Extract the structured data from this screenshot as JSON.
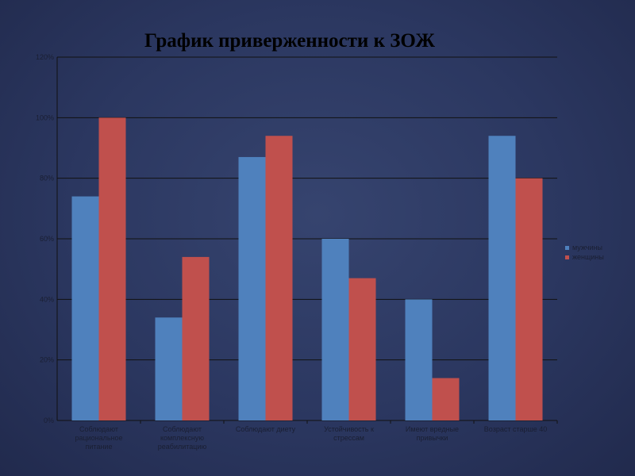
{
  "slide": {
    "title": "График приверженности к ЗОЖ"
  },
  "colors": {
    "men": "#4f81bd",
    "women": "#c0504d",
    "grid": "#111111"
  },
  "chart_data": {
    "type": "bar",
    "title": "График приверженности к ЗОЖ",
    "xlabel": "",
    "ylabel": "",
    "ylim": [
      0,
      120
    ],
    "y_ticks": [
      "0%",
      "20%",
      "40%",
      "60%",
      "80%",
      "100%",
      "120%"
    ],
    "grid": true,
    "legend_position": "right",
    "categories": [
      [
        "Соблюдают",
        "рациональное",
        "питание"
      ],
      [
        "Соблюдают",
        "комплексную",
        "реабилитацию"
      ],
      [
        "Соблюдают диету"
      ],
      [
        "Устойчивость к",
        "стрессам"
      ],
      [
        "Имеют вредные",
        "привычки"
      ],
      [
        "Возраст старше 40"
      ]
    ],
    "series": [
      {
        "name": "мужчины",
        "values": [
          74,
          34,
          87,
          60,
          40,
          94
        ]
      },
      {
        "name": "женщины",
        "values": [
          100,
          54,
          94,
          47,
          14,
          80
        ]
      }
    ]
  }
}
